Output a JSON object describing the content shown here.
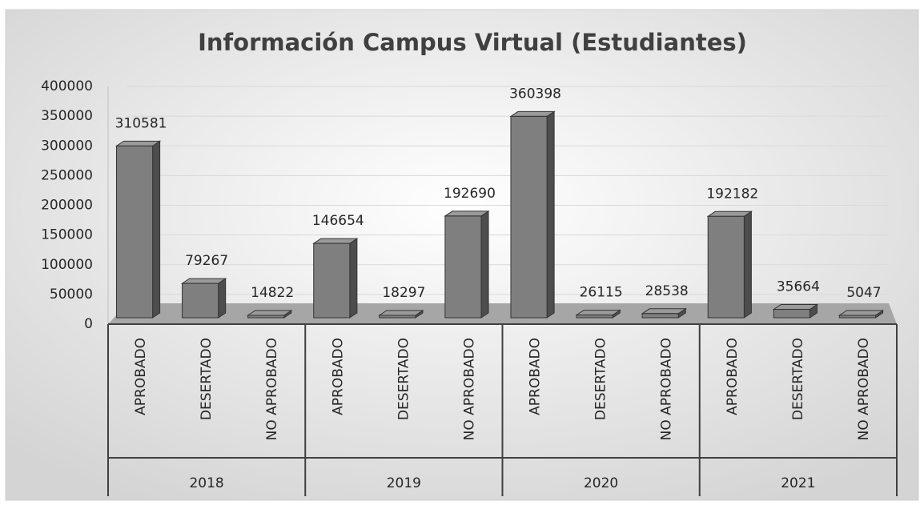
{
  "chart_data": {
    "type": "bar3d",
    "title": "Información Campus Virtual (Estudiantes)",
    "categories": [
      "APROBADO",
      "DESERTADO",
      "NO APROBADO",
      "APROBADO",
      "DESERTADO",
      "NO APROBADO",
      "APROBADO",
      "DESERTADO",
      "NO APROBADO",
      "APROBADO",
      "DESERTADO",
      "NO APROBADO"
    ],
    "groups": [
      "2018",
      "2019",
      "2020",
      "2021"
    ],
    "values": [
      310581,
      79267,
      14822,
      146654,
      18297,
      192690,
      360398,
      26115,
      28538,
      192182,
      35664,
      5047
    ],
    "color": "#7f7f7f",
    "ylim": [
      0,
      400000
    ],
    "yticks": [
      0,
      50000,
      100000,
      150000,
      200000,
      250000,
      300000,
      350000,
      400000
    ],
    "grid": true
  }
}
